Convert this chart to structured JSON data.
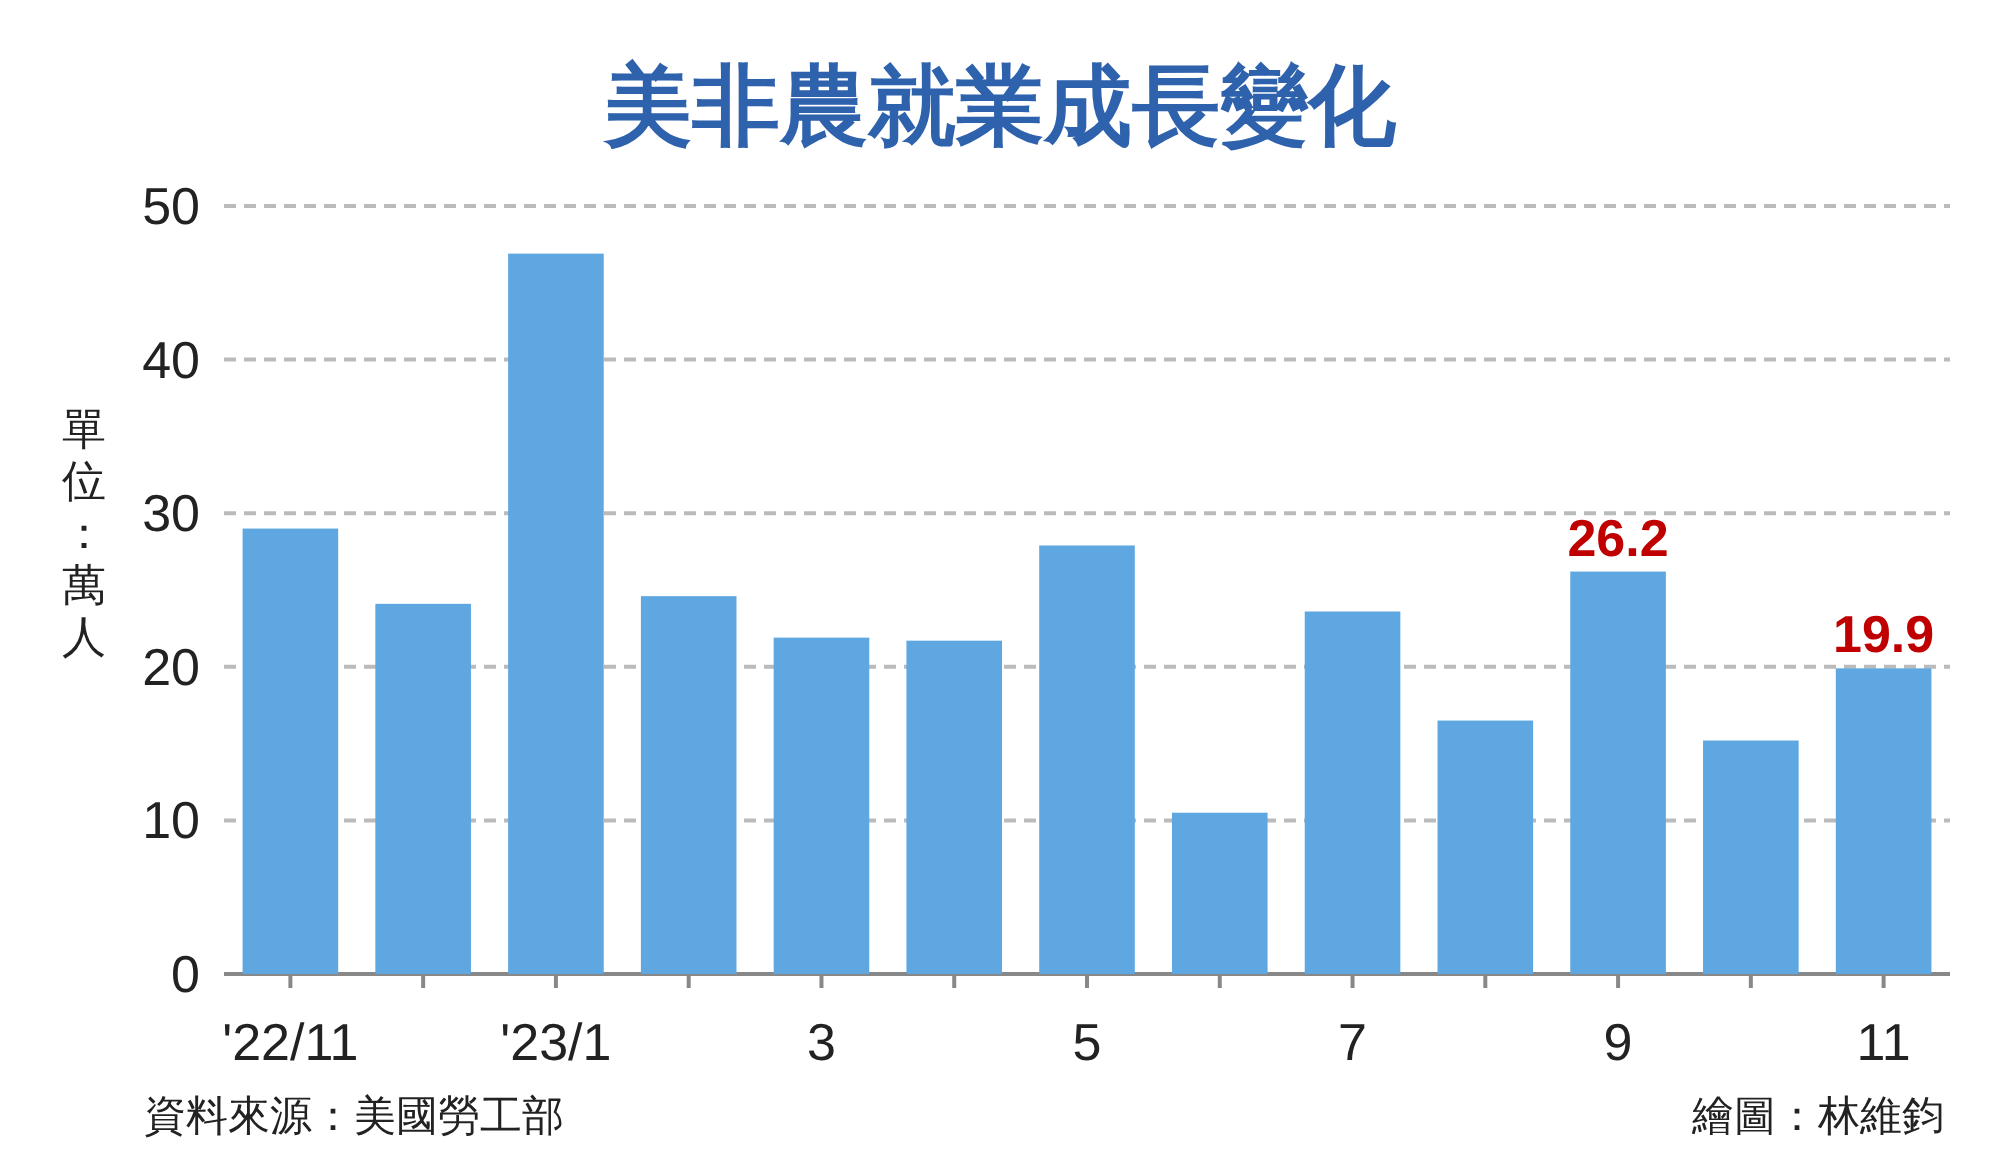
{
  "chart_data": {
    "type": "bar",
    "title": "美非農就業成長變化",
    "ylabel": "單位：萬人",
    "categories": [
      "'22/11",
      null,
      "'23/1",
      null,
      "3",
      null,
      "5",
      null,
      "7",
      null,
      "9",
      null,
      "11"
    ],
    "values": [
      29.0,
      24.1,
      46.9,
      24.6,
      21.9,
      21.7,
      27.9,
      10.5,
      23.6,
      16.5,
      26.2,
      15.2,
      19.9
    ],
    "value_labels": [
      null,
      null,
      null,
      null,
      null,
      null,
      null,
      null,
      null,
      null,
      "26.2",
      null,
      "19.9"
    ],
    "color": "#5ea7e0",
    "ylim": [
      0,
      50
    ],
    "yticks": [
      0,
      10,
      20,
      30,
      40,
      50
    ],
    "grid": "y",
    "annotations": [
      "資料來源：美國勞工部",
      "繪圖：林維鈞"
    ]
  }
}
